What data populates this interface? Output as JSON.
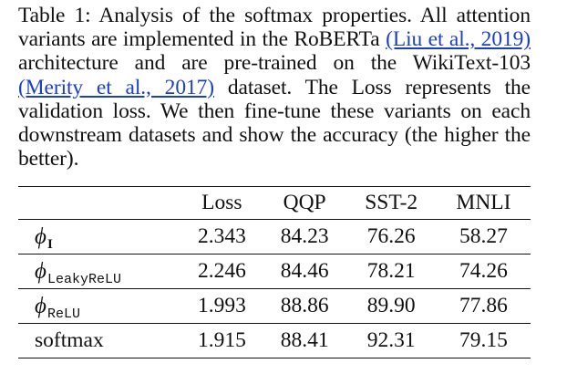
{
  "caption": {
    "label": "Table 1:",
    "text_before_cite1": "Analysis of the softmax properties. All attention variants are implemented in the RoBERTa",
    "cite1": "(Liu et al., 2019)",
    "text_between": "architecture and are pre-trained on the WikiText-103",
    "cite2": "(Merity et al., 2017)",
    "text_after": "dataset. The Loss represents the validation loss. We then fine-tune these variants on each downstream datasets and show the accuracy (the higher the better)."
  },
  "table": {
    "headers": [
      "",
      "Loss",
      "QQP",
      "SST-2",
      "MNLI"
    ],
    "rows": [
      {
        "method_symbol": "ϕ",
        "method_sub": "I",
        "values": [
          "2.343",
          "84.23",
          "76.26",
          "58.27"
        ]
      },
      {
        "method_symbol": "ϕ",
        "method_sub": "LeakyReLU",
        "values": [
          "2.246",
          "84.46",
          "78.21",
          "74.26"
        ]
      },
      {
        "method_symbol": "ϕ",
        "method_sub": "ReLU",
        "values": [
          "1.993",
          "88.86",
          "89.90",
          "77.86"
        ]
      },
      {
        "method_symbol": "",
        "method_sub": "",
        "method_text": "softmax",
        "values": [
          "1.915",
          "88.41",
          "92.31",
          "79.15"
        ]
      }
    ]
  },
  "colors": {
    "text": "#111111",
    "link": "#1a3fc7",
    "background": "#ffffff"
  }
}
